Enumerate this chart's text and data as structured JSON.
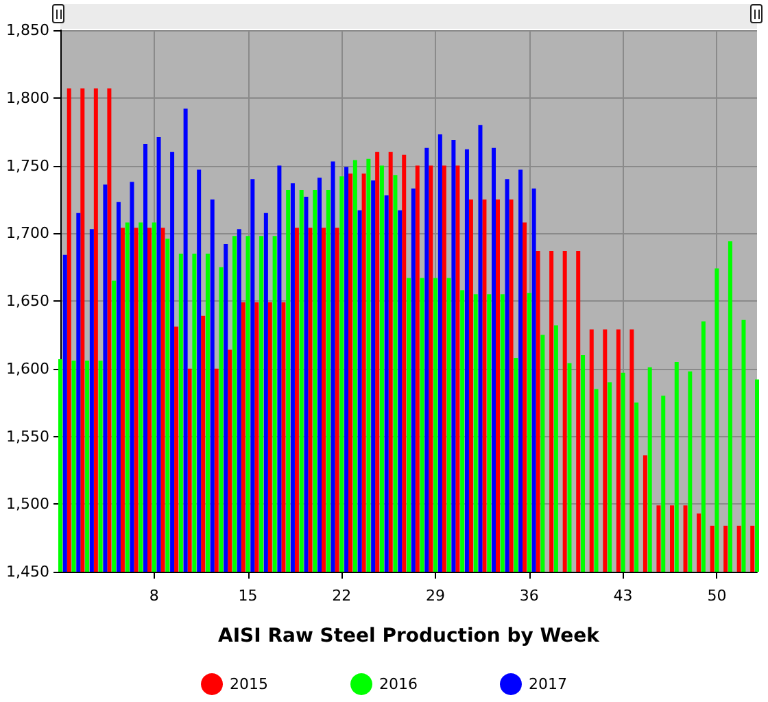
{
  "chart_data": {
    "type": "bar",
    "xlabel": "AISI Raw Steel Production by Week",
    "categories": [
      null,
      null,
      null,
      null,
      null,
      null,
      null,
      "8",
      null,
      null,
      null,
      null,
      null,
      null,
      "15",
      null,
      null,
      null,
      null,
      null,
      null,
      "22",
      null,
      null,
      null,
      null,
      null,
      null,
      "29",
      null,
      null,
      null,
      null,
      null,
      null,
      "36",
      null,
      null,
      null,
      null,
      null,
      null,
      "43",
      null,
      null,
      null,
      null,
      null,
      null,
      "50",
      null,
      null,
      null
    ],
    "series": [
      {
        "name": "2015",
        "color": "#ff0000",
        "values": [
          null,
          1807,
          1807,
          1807,
          1807,
          1704,
          1704,
          1704,
          1704,
          1631,
          1600,
          1639,
          1600,
          1614,
          1649,
          1649,
          1649,
          1649,
          1704,
          1704,
          1704,
          1704,
          1744,
          1744,
          1760,
          1760,
          1758,
          1750,
          1750,
          1750,
          1750,
          1725,
          1725,
          1725,
          1725,
          1708,
          1687,
          1687,
          1687,
          1687,
          1629,
          1629,
          1629,
          1629,
          1536,
          1499,
          1499,
          1499,
          1493,
          1484,
          1484,
          1484,
          1484
        ]
      },
      {
        "name": "2016",
        "color": "#00ff00",
        "values": [
          1607,
          1606,
          1606,
          1606,
          1665,
          1708,
          1708,
          1708,
          1696,
          1685,
          1685,
          1685,
          1675,
          1698,
          1698,
          1698,
          1698,
          1732,
          1732,
          1732,
          1732,
          1742,
          1754,
          1755,
          1750,
          1743,
          1667,
          1667,
          1667,
          1667,
          1658,
          1655,
          1655,
          1655,
          1608,
          1656,
          1625,
          1632,
          1604,
          1610,
          1585,
          1590,
          1597,
          1575,
          1601,
          1580,
          1605,
          1598,
          1635,
          1674,
          1694,
          1636,
          1592
        ]
      },
      {
        "name": "2017",
        "color": "#0000ff",
        "values": [
          1684,
          1715,
          1703,
          1736,
          1723,
          1738,
          1766,
          1771,
          1760,
          1792,
          1747,
          1725,
          1692,
          1703,
          1740,
          1715,
          1750,
          1737,
          1727,
          1741,
          1753,
          1749,
          1717,
          1739,
          1728,
          1717,
          1733,
          1763,
          1773,
          1769,
          1762,
          1780,
          1763,
          1740,
          1747,
          1733,
          null,
          null,
          null,
          null,
          null,
          null,
          null,
          null,
          null,
          null,
          null,
          null,
          null,
          null,
          null,
          null,
          null
        ]
      }
    ],
    "ylim": [
      1450,
      1850
    ],
    "yticks": [
      {
        "value": 1450,
        "label": "1,450"
      },
      {
        "value": 1500,
        "label": "1,500"
      },
      {
        "value": 1550,
        "label": "1,550"
      },
      {
        "value": 1600,
        "label": "1,600"
      },
      {
        "value": 1650,
        "label": "1,650"
      },
      {
        "value": 1700,
        "label": "1,700"
      },
      {
        "value": 1750,
        "label": "1,750"
      },
      {
        "value": 1800,
        "label": "1,800"
      },
      {
        "value": 1850,
        "label": "1,850"
      }
    ],
    "grid": true,
    "legend": "bottom"
  }
}
